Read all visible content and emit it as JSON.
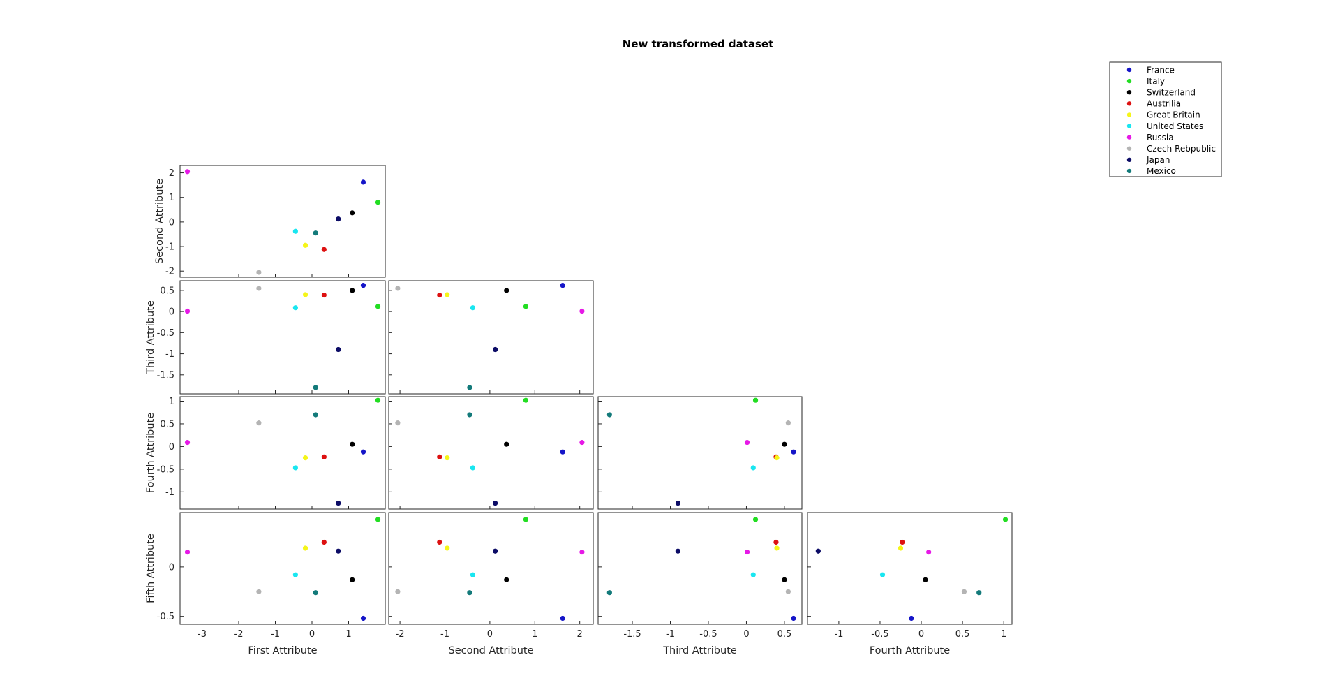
{
  "chart_data": {
    "type": "scatter",
    "title": "New transformed dataset",
    "legend_position": "top-right",
    "grid": false,
    "attributes": [
      "First Attribute",
      "Second Attribute",
      "Third Attribute",
      "Fourth Attribute",
      "Fifth Attribute"
    ],
    "series": [
      {
        "name": "France",
        "color": "#1515c8",
        "values": [
          1.4,
          1.62,
          0.62,
          -0.12,
          -0.52
        ]
      },
      {
        "name": "Italy",
        "color": "#22dd22",
        "values": [
          1.8,
          0.8,
          0.12,
          1.02,
          0.48
        ]
      },
      {
        "name": "Switzerland",
        "color": "#000000",
        "values": [
          1.1,
          0.37,
          0.5,
          0.05,
          -0.13
        ]
      },
      {
        "name": "Austrilia",
        "color": "#dd1111",
        "values": [
          0.33,
          -1.12,
          0.39,
          -0.23,
          0.25
        ]
      },
      {
        "name": "Great Britain",
        "color": "#f5f519",
        "values": [
          -0.18,
          -0.95,
          0.4,
          -0.25,
          0.19
        ]
      },
      {
        "name": "United States",
        "color": "#19e6f0",
        "values": [
          -0.45,
          -0.38,
          0.09,
          -0.47,
          -0.08
        ]
      },
      {
        "name": "Russia",
        "color": "#e619e6",
        "values": [
          -3.4,
          2.05,
          0.01,
          0.09,
          0.15
        ]
      },
      {
        "name": "Czech Rebpublic",
        "color": "#b4b4b4",
        "values": [
          -1.45,
          -2.05,
          0.55,
          0.52,
          -0.25
        ]
      },
      {
        "name": "Japan",
        "color": "#0c0c66",
        "values": [
          0.72,
          0.12,
          -0.9,
          -1.25,
          0.16
        ]
      },
      {
        "name": "Mexico",
        "color": "#137a7a",
        "values": [
          0.1,
          -0.45,
          -1.8,
          0.7,
          -0.26
        ]
      }
    ],
    "axes": {
      "First Attribute": {
        "range": [
          -3.6,
          2.0
        ],
        "ticks": [
          -3,
          -2,
          -1,
          0,
          1
        ],
        "tick_labels": [
          "-3",
          "-2",
          "-1",
          "0",
          "1"
        ]
      },
      "Second Attribute": {
        "range": [
          -2.25,
          2.3
        ],
        "ticks": [
          -2,
          -1,
          0,
          1,
          2
        ],
        "tick_labels": [
          "-2",
          "-1",
          "0",
          "1",
          "2"
        ]
      },
      "Third Attribute": {
        "range": [
          -1.95,
          0.73
        ],
        "ticks": [
          -1.5,
          -1,
          -0.5,
          0,
          0.5
        ],
        "tick_labels": [
          "-1.5",
          "-1",
          "-0.5",
          "0",
          "0.5"
        ]
      },
      "Fourth Attribute": {
        "range": [
          -1.38,
          1.1
        ],
        "ticks": [
          -1,
          -0.5,
          0,
          0.5,
          1
        ],
        "tick_labels": [
          "-1",
          "-0.5",
          "0",
          "0.5",
          "1"
        ]
      },
      "Fifth Attribute": {
        "range": [
          -0.58,
          0.55
        ],
        "ticks": [
          -0.5,
          0
        ],
        "tick_labels": [
          "-0.5",
          "0"
        ]
      }
    }
  }
}
